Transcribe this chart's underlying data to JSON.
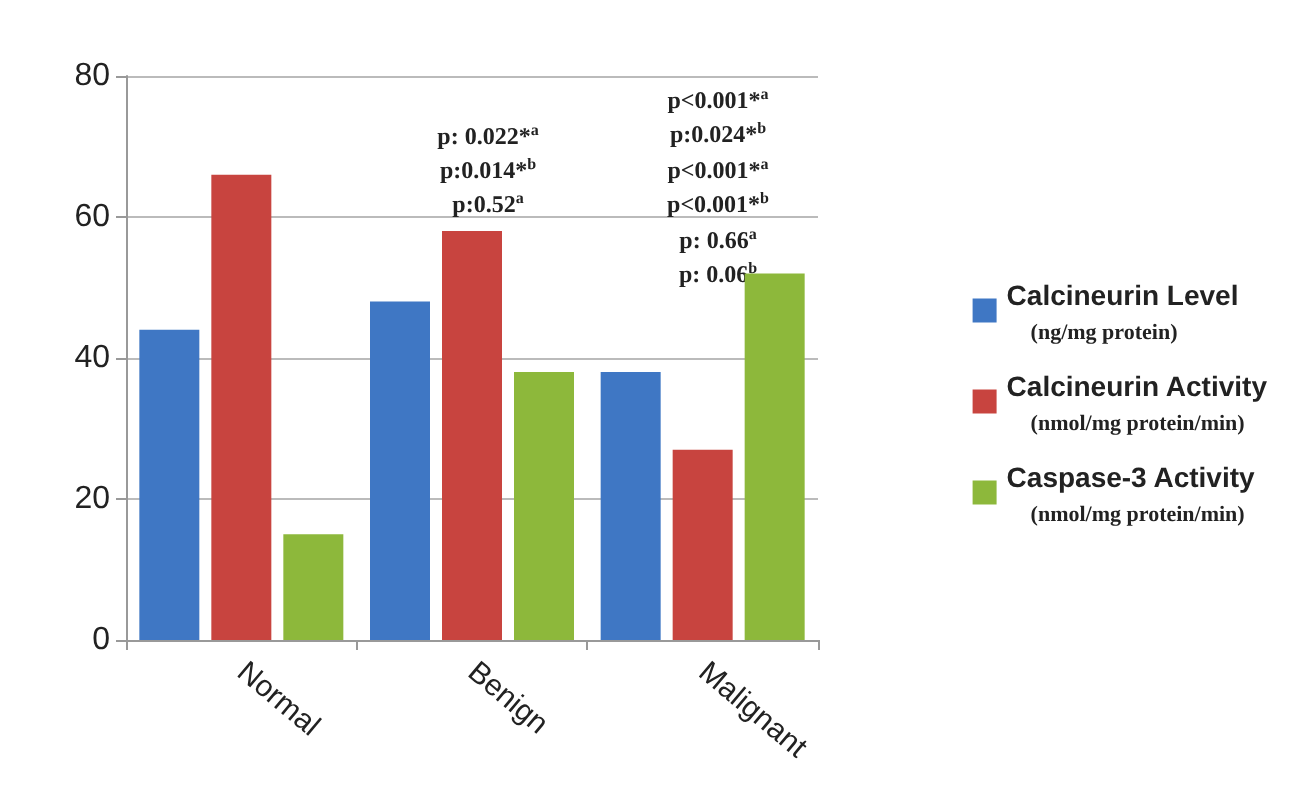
{
  "chart_data": {
    "type": "bar",
    "categories": [
      "Normal",
      "Benign",
      "Malignant"
    ],
    "series": [
      {
        "name": "Calcineurin Level\n(ng/mg protein)",
        "color": "#3f77c4",
        "values": [
          44,
          48,
          38
        ]
      },
      {
        "name": "Calcineurin Activity\n(nmol/mg protein/min)",
        "color": "#c8443f",
        "values": [
          66,
          58,
          27
        ]
      },
      {
        "name": "Caspase-3 Activity\n(nmol/mg protein/min)",
        "color": "#8db83b",
        "values": [
          15,
          38,
          52
        ]
      }
    ],
    "ylim": [
      0,
      80
    ],
    "yticks": [
      0,
      20,
      40,
      60,
      80
    ],
    "grid": "y",
    "legend": "right",
    "annotations": [
      "p: 0.022*$^{a}$",
      "p:0.014*$^{b}$",
      "p:0.52$^{a}$",
      "p<0.001*$^{a}$",
      "p:0.024*$^{b}$",
      "p<0.001*$^{a}$",
      "p<0.001*$^{b}$",
      "p: 0.66$^{a}$",
      "p: 0.06$^{b}$"
    ]
  }
}
